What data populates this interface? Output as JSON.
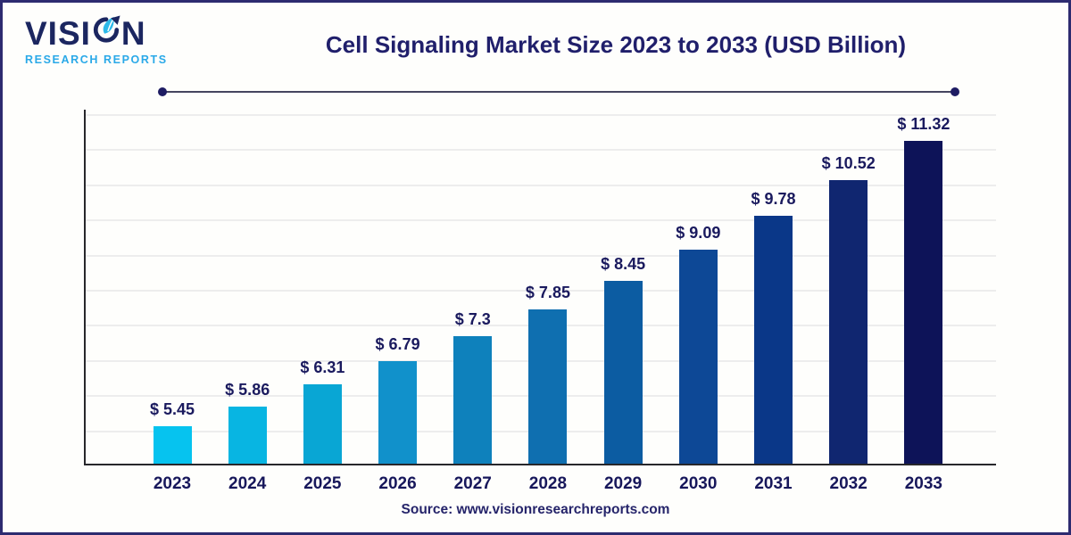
{
  "brand": {
    "name_pre": "VISI",
    "name_post": "N",
    "tagline": "RESEARCH REPORTS"
  },
  "header": {
    "title": "Cell Signaling Market Size 2023 to 2033 (USD Billion)"
  },
  "footer": {
    "source": "Source: www.visionresearchreports.com"
  },
  "colors": {
    "navy_text": "#201f6b",
    "tagline_blue": "#2aa9e8",
    "frame_border": "#2d2b70",
    "axis": "#27272b",
    "gridline": "#ededed"
  },
  "chart_data": {
    "type": "bar",
    "title": "Cell Signaling Market Size 2023 to 2033 (USD Billion)",
    "xlabel": "",
    "ylabel": "",
    "categories": [
      "2023",
      "2024",
      "2025",
      "2026",
      "2027",
      "2028",
      "2029",
      "2030",
      "2031",
      "2032",
      "2033"
    ],
    "values": [
      5.45,
      5.86,
      6.31,
      6.79,
      7.3,
      7.85,
      8.45,
      9.09,
      9.78,
      10.52,
      11.32
    ],
    "labels": [
      "$ 5.45",
      "$ 5.86",
      "$ 6.31",
      "$ 6.79",
      "$ 7.3",
      "$ 7.85",
      "$ 8.45",
      "$ 9.09",
      "$ 9.78",
      "$ 10.52",
      "$ 11.32"
    ],
    "bar_colors": [
      "#06c3ef",
      "#08b5e2",
      "#09a6d4",
      "#1191cb",
      "#0e81bc",
      "#0f6fb0",
      "#0c5ca2",
      "#0d4896",
      "#0a3788",
      "#102670",
      "#0d1358"
    ],
    "ylim": [
      4.68,
      12
    ],
    "grid": true,
    "y_axis_tick_labels": false,
    "legend": "none",
    "source": "Source: www.visionresearchreports.com"
  }
}
